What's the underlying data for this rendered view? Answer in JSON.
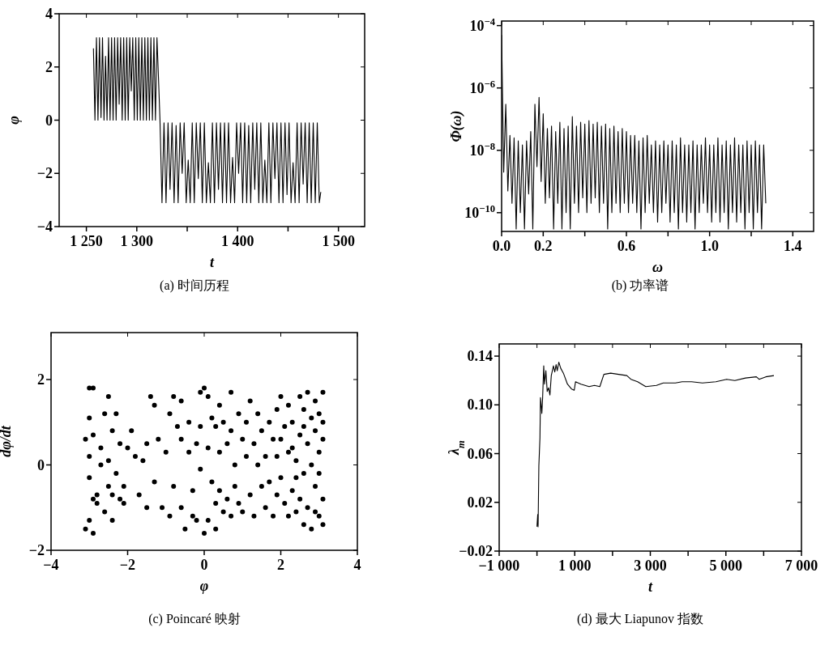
{
  "chart_data": [
    {
      "type": "line",
      "title": "(a) 时间历程",
      "xlabel": "t",
      "ylabel": "φ",
      "xlim": [
        1223,
        1526
      ],
      "ylim": [
        -4,
        4
      ],
      "xticks": [
        {
          "value": 1250,
          "label": "1 250"
        },
        {
          "value": 1300,
          "label": "1 300"
        },
        {
          "value": 1350,
          "label": null
        },
        {
          "value": 1400,
          "label": "1 400"
        },
        {
          "value": 1450,
          "label": null
        },
        {
          "value": 1500,
          "label": "1 500"
        }
      ],
      "yticks": [
        {
          "value": -4,
          "label": "−4"
        },
        {
          "value": -2,
          "label": "−2"
        },
        0,
        2,
        4
      ],
      "x": [
        1257,
        1258.5,
        1260,
        1261.5,
        1263,
        1264.5,
        1266,
        1267.5,
        1269,
        1270.5,
        1272,
        1273.5,
        1275,
        1276.5,
        1278,
        1279.5,
        1281,
        1282.5,
        1284,
        1285.5,
        1287,
        1288.5,
        1290,
        1291.5,
        1293,
        1294.5,
        1296,
        1297.5,
        1299,
        1300.5,
        1302,
        1303.5,
        1305,
        1306.5,
        1308,
        1309.5,
        1311,
        1312.5,
        1314,
        1315.5,
        1317,
        1318.5,
        1320,
        1321.5,
        1323,
        1325,
        1327,
        1329,
        1331,
        1333,
        1335,
        1337,
        1339,
        1341,
        1343,
        1345,
        1347,
        1349,
        1351,
        1353,
        1355,
        1357,
        1359,
        1361,
        1363,
        1365,
        1367,
        1369,
        1371,
        1373,
        1375,
        1377,
        1379,
        1381,
        1383,
        1385,
        1387,
        1389,
        1391,
        1393,
        1395,
        1397,
        1399,
        1401,
        1403,
        1405,
        1407,
        1409,
        1411,
        1413,
        1415,
        1417,
        1419,
        1421,
        1423,
        1425,
        1427,
        1429,
        1431,
        1433,
        1435,
        1437,
        1439,
        1441,
        1443,
        1445,
        1447,
        1449,
        1451,
        1453,
        1455,
        1457,
        1459,
        1461,
        1463,
        1465,
        1467,
        1469,
        1471,
        1473,
        1475,
        1477,
        1479,
        1481,
        1482.5
      ],
      "series": [
        {
          "color": "#000000",
          "values": [
            2.7,
            0.0,
            3.1,
            0.0,
            3.1,
            0.1,
            3.1,
            0.0,
            2.4,
            0.0,
            3.1,
            0.0,
            3.1,
            0.0,
            3.1,
            0.0,
            3.1,
            0.6,
            3.1,
            0.0,
            3.1,
            0.0,
            3.1,
            0.0,
            3.1,
            1.1,
            3.1,
            0.0,
            3.1,
            0.0,
            3.1,
            0.0,
            3.1,
            0.0,
            3.1,
            0.0,
            3.1,
            0.0,
            3.1,
            0.0,
            3.1,
            0.0,
            3.1,
            1.6,
            0.0,
            -3.1,
            -0.1,
            -3.1,
            -0.1,
            -2.6,
            -0.1,
            -3.1,
            -0.2,
            -3.1,
            -0.1,
            -2.0,
            -0.1,
            -3.1,
            -1.5,
            -3.1,
            -0.1,
            -3.1,
            -0.1,
            -2.2,
            -0.1,
            -3.1,
            -0.1,
            -3.1,
            -1.6,
            -3.1,
            -0.1,
            -3.1,
            -0.1,
            -2.6,
            -0.1,
            -3.1,
            -0.1,
            -3.1,
            -0.1,
            -3.1,
            -1.4,
            -3.1,
            -0.1,
            -2.0,
            -0.1,
            -3.1,
            -0.1,
            -3.1,
            -0.2,
            -3.1,
            -0.1,
            -2.6,
            -0.1,
            -3.1,
            -0.1,
            -3.1,
            -1.5,
            -3.1,
            -0.1,
            -3.1,
            -0.1,
            -2.2,
            -0.1,
            -3.1,
            -0.1,
            -3.1,
            -0.1,
            -2.8,
            -0.1,
            -3.1,
            -1.6,
            -3.1,
            -0.1,
            -3.1,
            -0.1,
            -2.4,
            -0.1,
            -3.1,
            -0.1,
            -3.1,
            -0.1,
            -3.1,
            -0.1,
            -3.1,
            -2.7
          ]
        }
      ]
    },
    {
      "type": "line",
      "title": "(b) 功率谱",
      "xlabel": "ω",
      "ylabel": "Φ(ω)",
      "log": "y",
      "xlim": [
        0,
        1.5
      ],
      "ylim": [
        2.5e-11,
        0.00014
      ],
      "xticks": [
        {
          "value": 0,
          "label": "0.0"
        },
        0.2,
        {
          "value": 0.4,
          "label": null
        },
        0.6,
        {
          "value": 0.8,
          "label": null
        },
        {
          "value": 1.0,
          "label": "1.0"
        },
        {
          "value": 1.2,
          "label": null
        },
        1.4
      ],
      "yticks": [
        {
          "value": 1e-10,
          "label": "10$^{−10}$"
        },
        {
          "value": 1e-08,
          "label": "10$^{−8}$"
        },
        {
          "value": 1e-06,
          "label": "10$^{−6}$"
        },
        {
          "value": 0.0001,
          "label": "10$^{−4}$"
        }
      ],
      "x": [
        0.0,
        0.01,
        0.02,
        0.03,
        0.04,
        0.05,
        0.06,
        0.07,
        0.08,
        0.09,
        0.1,
        0.11,
        0.12,
        0.13,
        0.14,
        0.15,
        0.16,
        0.17,
        0.18,
        0.19,
        0.2,
        0.21,
        0.22,
        0.23,
        0.24,
        0.25,
        0.26,
        0.27,
        0.28,
        0.29,
        0.3,
        0.31,
        0.32,
        0.33,
        0.34,
        0.35,
        0.36,
        0.37,
        0.38,
        0.39,
        0.4,
        0.41,
        0.42,
        0.43,
        0.44,
        0.45,
        0.46,
        0.47,
        0.48,
        0.49,
        0.5,
        0.51,
        0.52,
        0.53,
        0.54,
        0.55,
        0.56,
        0.57,
        0.58,
        0.59,
        0.6,
        0.61,
        0.62,
        0.63,
        0.64,
        0.65,
        0.66,
        0.67,
        0.68,
        0.69,
        0.7,
        0.71,
        0.72,
        0.73,
        0.74,
        0.75,
        0.76,
        0.77,
        0.78,
        0.79,
        0.8,
        0.81,
        0.82,
        0.83,
        0.84,
        0.85,
        0.86,
        0.87,
        0.88,
        0.89,
        0.9,
        0.91,
        0.92,
        0.93,
        0.94,
        0.95,
        0.96,
        0.97,
        0.98,
        0.99,
        1.0,
        1.01,
        1.02,
        1.03,
        1.04,
        1.05,
        1.06,
        1.07,
        1.08,
        1.09,
        1.1,
        1.11,
        1.12,
        1.13,
        1.14,
        1.15,
        1.16,
        1.17,
        1.18,
        1.19,
        1.2,
        1.21,
        1.22,
        1.23,
        1.24,
        1.25,
        1.26,
        1.27
      ],
      "series": [
        {
          "color": "#000000",
          "values": [
            5e-05,
            2e-09,
            3e-07,
            5e-10,
            3e-08,
            2e-10,
            2.5e-08,
            3e-11,
            2e-08,
            1e-10,
            1.5e-08,
            3e-11,
            2e-08,
            4e-10,
            4e-08,
            3e-11,
            3e-07,
            3e-09,
            5e-07,
            1e-09,
            1.5e-07,
            2e-10,
            5e-08,
            3e-10,
            6e-08,
            3e-11,
            4e-08,
            2e-10,
            8e-08,
            3e-11,
            5e-08,
            1e-10,
            6e-08,
            3e-11,
            1.2e-07,
            2e-10,
            6e-08,
            1e-10,
            8e-08,
            3e-10,
            7e-08,
            1e-10,
            9e-08,
            2e-10,
            7e-08,
            3e-10,
            8e-08,
            1e-10,
            6e-08,
            2e-10,
            7e-08,
            3e-11,
            5e-08,
            1e-10,
            6e-08,
            2e-10,
            4e-08,
            1e-10,
            5e-08,
            2e-10,
            4e-08,
            1e-10,
            3e-08,
            2e-10,
            3e-08,
            1e-10,
            2e-08,
            3e-11,
            2.5e-08,
            1e-10,
            3e-08,
            2e-10,
            1.5e-08,
            1e-10,
            2e-08,
            5e-11,
            1.5e-08,
            1e-10,
            2e-08,
            2e-10,
            1.5e-08,
            5e-11,
            2e-08,
            1e-10,
            1.5e-08,
            3e-11,
            2.5e-08,
            1e-10,
            1.5e-08,
            5e-11,
            1.5e-08,
            1e-10,
            2e-08,
            3e-11,
            1.5e-08,
            1e-10,
            1.5e-08,
            2e-10,
            2.5e-08,
            1e-10,
            1.5e-08,
            5e-11,
            1.5e-08,
            1e-10,
            2.5e-08,
            5e-11,
            1.5e-08,
            1e-10,
            2e-08,
            3e-11,
            1.5e-08,
            1e-10,
            2.5e-08,
            5e-11,
            1.5e-08,
            1e-10,
            1.5e-08,
            3e-11,
            2e-08,
            1e-10,
            1.5e-08,
            3e-11,
            2e-08,
            1e-10,
            1.5e-08,
            3e-11,
            1.5e-08,
            2e-10
          ]
        }
      ]
    },
    {
      "type": "scatter",
      "title": "(c) Poincaré 映射",
      "xlabel": "φ",
      "ylabel": "dφ/dt",
      "xlim": [
        -4,
        4
      ],
      "ylim": [
        -2,
        3.1
      ],
      "xticks": [
        {
          "value": -4,
          "label": "−4"
        },
        {
          "value": -2,
          "label": "−2"
        },
        0,
        2,
        4
      ],
      "yticks": [
        {
          "value": -2,
          "label": "−2"
        },
        0,
        2
      ],
      "x": [
        -3.0,
        -2.9,
        -3.0,
        -2.9,
        -3.1,
        -3.0,
        -3.0,
        -2.9,
        -2.8,
        -3.0,
        -3.1,
        -2.9,
        -2.8,
        -2.7,
        -2.6,
        -2.7,
        -2.5,
        -2.5,
        -2.4,
        -2.4,
        -2.3,
        -2.3,
        -2.2,
        -2.2,
        -2.6,
        -2.5,
        -2.1,
        -2.0,
        -2.1,
        -2.4,
        -1.9,
        -1.8,
        -1.7,
        -1.6,
        -1.5,
        -1.5,
        -1.4,
        -1.3,
        -1.3,
        -1.2,
        -1.1,
        -1.0,
        -0.9,
        -0.9,
        -0.8,
        -0.8,
        -0.7,
        -0.6,
        -0.6,
        -0.6,
        -0.5,
        -0.4,
        -0.4,
        -0.3,
        -0.3,
        -0.2,
        -0.1,
        -0.1,
        -0.2,
        -0.1,
        0.0,
        0.1,
        0.0,
        0.1,
        0.1,
        0.2,
        0.2,
        0.3,
        0.3,
        0.3,
        0.4,
        0.4,
        0.4,
        0.5,
        0.5,
        0.6,
        0.6,
        0.7,
        0.7,
        0.7,
        0.8,
        0.8,
        0.9,
        0.9,
        1.0,
        1.0,
        1.1,
        1.1,
        1.2,
        1.2,
        1.3,
        1.3,
        1.4,
        1.4,
        1.5,
        1.5,
        1.6,
        1.6,
        1.7,
        1.7,
        1.8,
        1.8,
        1.9,
        1.9,
        1.9,
        2.0,
        2.0,
        2.1,
        2.1,
        2.2,
        2.2,
        2.3,
        2.3,
        2.4,
        2.4,
        2.5,
        2.5,
        2.6,
        2.6,
        2.6,
        2.7,
        2.7,
        2.7,
        2.8,
        2.8,
        2.8,
        2.9,
        2.9,
        2.9,
        3.0,
        3.0,
        3.0,
        3.1,
        3.1,
        3.1,
        3.1,
        3.0,
        2.5,
        2.2,
        2.4,
        3.1,
        2.0,
        2.3,
        2.9,
        2.6
      ],
      "series": [
        {
          "color": "#000000",
          "values": [
            1.8,
            1.8,
            1.1,
            0.7,
            0.6,
            0.2,
            -0.3,
            -0.8,
            -0.7,
            -1.3,
            -1.5,
            -1.6,
            -0.9,
            0.0,
            1.2,
            0.4,
            -0.5,
            1.6,
            -1.3,
            0.8,
            -0.2,
            1.2,
            -0.8,
            0.5,
            -1.1,
            0.1,
            -0.9,
            0.4,
            -0.5,
            -0.7,
            0.8,
            0.2,
            -0.7,
            0.1,
            -1.0,
            0.5,
            1.6,
            1.4,
            -0.4,
            0.6,
            -1.0,
            0.3,
            1.2,
            -1.2,
            1.6,
            -0.5,
            0.9,
            -1.0,
            1.5,
            0.6,
            -1.5,
            1.0,
            0.3,
            -1.2,
            -0.6,
            0.5,
            1.7,
            -0.1,
            -1.3,
            0.9,
            1.8,
            1.6,
            -1.6,
            -1.3,
            0.4,
            -0.4,
            1.1,
            -1.5,
            0.9,
            -0.9,
            1.4,
            0.3,
            -0.6,
            -1.1,
            1.0,
            0.5,
            -0.8,
            1.7,
            -1.2,
            0.8,
            0.0,
            -0.5,
            1.2,
            -0.9,
            0.6,
            -1.1,
            1.0,
            0.2,
            -0.7,
            1.5,
            0.5,
            -1.2,
            0.0,
            1.2,
            -0.5,
            0.8,
            -1.0,
            0.2,
            1.0,
            -0.4,
            0.6,
            -1.2,
            0.2,
            -0.7,
            1.3,
            1.6,
            -0.3,
            0.9,
            -0.9,
            1.4,
            0.3,
            -0.6,
            1.0,
            -1.1,
            0.1,
            0.7,
            -0.8,
            1.3,
            -1.4,
            -0.2,
            0.5,
            1.7,
            -1.0,
            -1.5,
            0.0,
            1.1,
            -0.5,
            1.5,
            0.8,
            -1.2,
            0.3,
            1.2,
            -0.8,
            0.6,
            1.7,
            -1.4,
            -0.2,
            1.6,
            -1.2,
            -0.3,
            1.0,
            0.6,
            0.4,
            -1.1,
            0.9
          ]
        }
      ]
    },
    {
      "type": "line",
      "title": "(d) 最大 Liapunov 指数",
      "xlabel": "t",
      "ylabel": "λ$_{m}$",
      "xlim": [
        -1000,
        7000
      ],
      "ylim": [
        -0.02,
        0.15
      ],
      "xticks": [
        {
          "value": -1000,
          "label": "−1 000"
        },
        {
          "value": 0,
          "label": null
        },
        {
          "value": 1000,
          "label": "1 000"
        },
        {
          "value": 2000,
          "label": null
        },
        {
          "value": 3000,
          "label": "3 000"
        },
        {
          "value": 4000,
          "label": null
        },
        {
          "value": 5000,
          "label": "5 000"
        },
        {
          "value": 6000,
          "label": null
        },
        {
          "value": 7000,
          "label": "7 000"
        }
      ],
      "yticks": [
        {
          "value": -0.02,
          "label": "−0.02"
        },
        0.02,
        0.06,
        {
          "value": 0.1,
          "label": "0.10"
        },
        0.14
      ],
      "x": [
        0,
        20,
        30,
        50,
        79,
        93,
        129,
        150,
        179,
        200,
        236,
        271,
        307,
        343,
        379,
        436,
        471,
        507,
        536,
        579,
        629,
        700,
        807,
        914,
        986,
        1021,
        1164,
        1379,
        1521,
        1664,
        1771,
        1950,
        2164,
        2379,
        2486,
        2664,
        2879,
        3164,
        3343,
        3664,
        3843,
        4093,
        4379,
        4736,
        5021,
        5236,
        5521,
        5807,
        5879,
        6057,
        6271
      ],
      "series": [
        {
          "color": "#000000",
          "values": [
            0.0,
            0.01,
            0.0,
            0.05,
            0.073,
            0.106,
            0.093,
            0.106,
            0.132,
            0.117,
            0.128,
            0.111,
            0.114,
            0.108,
            0.124,
            0.132,
            0.127,
            0.133,
            0.128,
            0.135,
            0.13,
            0.126,
            0.117,
            0.113,
            0.112,
            0.119,
            0.117,
            0.115,
            0.116,
            0.115,
            0.125,
            0.126,
            0.125,
            0.124,
            0.121,
            0.119,
            0.115,
            0.116,
            0.118,
            0.118,
            0.119,
            0.119,
            0.118,
            0.119,
            0.121,
            0.12,
            0.122,
            0.123,
            0.121,
            0.123,
            0.124
          ]
        }
      ]
    }
  ]
}
